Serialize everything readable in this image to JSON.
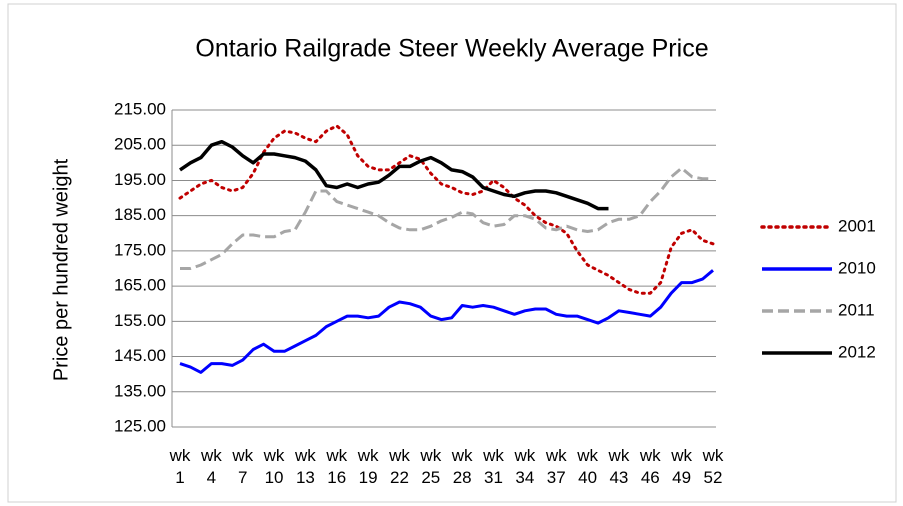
{
  "chart_data": {
    "type": "line",
    "title": "Ontario Railgrade Steer Weekly Average Price",
    "y_label": "Price per hundred weight",
    "categories": [
      "wk 1",
      null,
      null,
      "wk 4",
      null,
      null,
      "wk 7",
      null,
      null,
      "wk 10",
      null,
      null,
      "wk 13",
      null,
      null,
      "wk 16",
      null,
      null,
      "wk 19",
      null,
      null,
      "wk 22",
      null,
      null,
      "wk 25",
      null,
      null,
      "wk 28",
      null,
      null,
      "wk 31",
      null,
      null,
      "wk 34",
      null,
      null,
      "wk 37",
      null,
      null,
      "wk 40",
      null,
      null,
      "wk 43",
      null,
      null,
      "wk 46",
      null,
      null,
      "wk 49",
      null,
      null,
      "wk 52"
    ],
    "series": [
      {
        "name": "2001",
        "color": "#c00000",
        "style": "dotted",
        "values": [
          190,
          192,
          194,
          195,
          193,
          192,
          193,
          197,
          203,
          207,
          209,
          208.5,
          207,
          206,
          209,
          210.5,
          208,
          202,
          199,
          198,
          198,
          200,
          202,
          201,
          197,
          194,
          193,
          191.5,
          191,
          192,
          195,
          193,
          190,
          188,
          185,
          183,
          182,
          180,
          175,
          171,
          169.5,
          168,
          166,
          164,
          163,
          163,
          166,
          176,
          180,
          181,
          178,
          177
        ]
      },
      {
        "name": "2010",
        "color": "#0000ff",
        "style": "solid",
        "values": [
          143,
          142,
          140.5,
          143,
          143,
          142.5,
          144,
          147,
          148.5,
          146.5,
          146.5,
          148,
          149.5,
          151,
          153.5,
          155,
          156.5,
          156.5,
          156,
          156.5,
          159,
          160.5,
          160,
          159,
          156.5,
          155.5,
          156,
          159.5,
          159,
          159.5,
          159,
          158,
          157,
          158,
          158.5,
          158.5,
          157,
          156.5,
          156.5,
          155.5,
          154.5,
          156,
          158,
          157.5,
          157,
          156.5,
          159,
          163,
          166,
          166,
          167,
          169.5
        ]
      },
      {
        "name": "2011",
        "color": "#a6a6a6",
        "style": "dashed",
        "values": [
          170,
          170,
          171,
          172.5,
          174,
          177,
          179.5,
          179.5,
          179,
          179,
          180.5,
          181,
          186,
          192,
          192,
          189,
          188,
          187,
          186,
          185,
          183,
          181.5,
          181,
          181,
          182,
          183.5,
          184.5,
          186,
          185.5,
          183,
          182,
          182.5,
          185,
          185,
          184,
          181.5,
          181,
          182,
          181,
          180.5,
          181,
          183,
          184,
          184,
          185,
          189,
          192,
          196,
          198.5,
          196,
          195.5,
          195.5
        ]
      },
      {
        "name": "2012",
        "color": "#000000",
        "style": "solid",
        "values": [
          198,
          200,
          201.5,
          205,
          206,
          204.5,
          202,
          200,
          202.5,
          202.5,
          202,
          201.5,
          200.5,
          198,
          193.5,
          193,
          194,
          193,
          194,
          194.5,
          196.5,
          199,
          199,
          200.5,
          201.5,
          200,
          198,
          197.5,
          196,
          193,
          192,
          191,
          190.5,
          191.5,
          192,
          192,
          191.5,
          190.5,
          189.5,
          188.5,
          187,
          187,
          null,
          null,
          null,
          null,
          null,
          null,
          null,
          null,
          null,
          null
        ]
      }
    ],
    "ylim": [
      125,
      215
    ],
    "yticks": [
      {
        "value": 125,
        "label": "125.00"
      },
      {
        "value": 135,
        "label": "135.00"
      },
      {
        "value": 145,
        "label": "145.00"
      },
      {
        "value": 155,
        "label": "155.00"
      },
      {
        "value": 165,
        "label": "165.00"
      },
      {
        "value": 175,
        "label": "175.00"
      },
      {
        "value": 185,
        "label": "185.00"
      },
      {
        "value": 195,
        "label": "195.00"
      },
      {
        "value": 205,
        "label": "205.00"
      },
      {
        "value": 215,
        "label": "215.00"
      }
    ],
    "grid": true,
    "legend": "right"
  }
}
